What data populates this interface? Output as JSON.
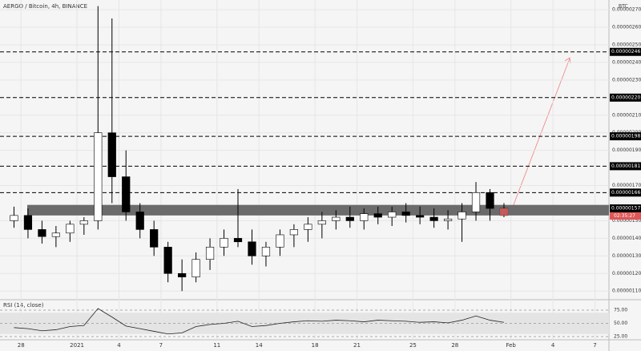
{
  "chart_data": {
    "type": "candlestick",
    "title": "AERGO / Bitcoin, 4h, BINANCE",
    "unit": "BTC",
    "x": [
      -4,
      -3,
      -2,
      -1,
      0,
      1,
      2,
      3,
      4,
      5,
      6,
      7,
      8,
      9,
      10,
      11,
      12,
      13,
      14,
      15,
      16,
      17,
      18,
      19,
      20,
      21,
      22,
      23,
      24,
      25,
      26,
      27,
      28,
      29,
      30,
      31
    ],
    "open": [
      1.5e-06,
      1.53e-06,
      1.45e-06,
      1.41e-06,
      1.43e-06,
      1.48e-06,
      1.5e-06,
      2e-06,
      1.75e-06,
      1.55e-06,
      1.45e-06,
      1.35e-06,
      1.2e-06,
      1.18e-06,
      1.28e-06,
      1.35e-06,
      1.4e-06,
      1.38e-06,
      1.3e-06,
      1.35e-06,
      1.42e-06,
      1.45e-06,
      1.48e-06,
      1.5e-06,
      1.52e-06,
      1.5e-06,
      1.54e-06,
      1.52e-06,
      1.55e-06,
      1.53e-06,
      1.52e-06,
      1.5e-06,
      1.51e-06,
      1.55e-06,
      1.66e-06,
      1.57e-06
    ],
    "high": [
      1.58e-06,
      1.57e-06,
      1.5e-06,
      1.47e-06,
      1.5e-06,
      1.52e-06,
      2.72e-06,
      2.65e-06,
      1.9e-06,
      1.6e-06,
      1.5e-06,
      1.38e-06,
      1.28e-06,
      1.32e-06,
      1.4e-06,
      1.45e-06,
      1.68e-06,
      1.45e-06,
      1.38e-06,
      1.45e-06,
      1.48e-06,
      1.52e-06,
      1.55e-06,
      1.56e-06,
      1.58e-06,
      1.57e-06,
      1.58e-06,
      1.58e-06,
      1.6e-06,
      1.58e-06,
      1.57e-06,
      1.56e-06,
      1.6e-06,
      1.72e-06,
      1.68e-06,
      1.6e-06
    ],
    "low": [
      1.46e-06,
      1.4e-06,
      1.37e-06,
      1.35e-06,
      1.38e-06,
      1.42e-06,
      1.45e-06,
      1.6e-06,
      1.5e-06,
      1.4e-06,
      1.3e-06,
      1.15e-06,
      1.1e-06,
      1.15e-06,
      1.22e-06,
      1.3e-06,
      1.35e-06,
      1.25e-06,
      1.24e-06,
      1.3e-06,
      1.35e-06,
      1.38e-06,
      1.4e-06,
      1.45e-06,
      1.46e-06,
      1.45e-06,
      1.48e-06,
      1.47e-06,
      1.49e-06,
      1.48e-06,
      1.46e-06,
      1.45e-06,
      1.38e-06,
      1.5e-06,
      1.5e-06,
      1.52e-06
    ],
    "close": [
      1.53e-06,
      1.45e-06,
      1.41e-06,
      1.43e-06,
      1.48e-06,
      1.5e-06,
      2e-06,
      1.75e-06,
      1.55e-06,
      1.45e-06,
      1.35e-06,
      1.2e-06,
      1.18e-06,
      1.28e-06,
      1.35e-06,
      1.4e-06,
      1.38e-06,
      1.3e-06,
      1.35e-06,
      1.42e-06,
      1.45e-06,
      1.48e-06,
      1.5e-06,
      1.52e-06,
      1.5e-06,
      1.54e-06,
      1.52e-06,
      1.55e-06,
      1.53e-06,
      1.52e-06,
      1.5e-06,
      1.51e-06,
      1.55e-06,
      1.66e-06,
      1.57e-06,
      1.53e-06
    ],
    "up_color": "#ffffff",
    "down_color": "#000000",
    "outline": "#000000",
    "xlim": [
      -4.5,
      39
    ],
    "xticks": [
      {
        "value": -3,
        "label": "28"
      },
      {
        "value": 1,
        "label": "2021"
      },
      4,
      7,
      11,
      14,
      18,
      21,
      25,
      28,
      {
        "value": 32,
        "label": "Feb"
      },
      {
        "value": 35,
        "label": "4"
      },
      {
        "value": 38,
        "label": "7"
      }
    ],
    "ylim": [
      1.06e-06,
      2.755e-06
    ],
    "yticks": [
      {
        "value": 1.1e-06,
        "label": "0.00000110"
      },
      {
        "value": 1.2e-06,
        "label": "0.00000120"
      },
      {
        "value": 1.3e-06,
        "label": "0.00000130"
      },
      {
        "value": 1.4e-06,
        "label": "0.00000140"
      },
      {
        "value": 1.5e-06,
        "label": "0.00000150"
      },
      {
        "value": 1.7e-06,
        "label": "0.00000170"
      },
      {
        "value": 1.9e-06,
        "label": "0.00000190"
      },
      {
        "value": 2e-06,
        "label": "0.00000200"
      },
      {
        "value": 2.1e-06,
        "label": "0.00000210"
      },
      {
        "value": 2.3e-06,
        "label": "0.00000230"
      },
      {
        "value": 2.4e-06,
        "label": "0.00000240"
      },
      {
        "value": 2.5e-06,
        "label": "0.00000250"
      },
      {
        "value": 2.6e-06,
        "label": "0.00000260"
      },
      {
        "value": 2.7e-06,
        "label": "0.00000270"
      }
    ],
    "levels": [
      {
        "value": 2.46e-06,
        "label": "0.00000246"
      },
      {
        "value": 2.2e-06,
        "label": "0.00000220"
      },
      {
        "value": 1.98e-06,
        "label": "0.00000198"
      },
      {
        "value": 1.81e-06,
        "label": "0.00000181"
      },
      {
        "value": 1.66e-06,
        "label": "0.00000166"
      }
    ],
    "zone": [
      1.53e-06,
      1.59e-06
    ],
    "zone_color": "#6b6b6b",
    "zone_label": {
      "value": 1.57e-06,
      "label": "0.00000157"
    },
    "countdown": "02:35:27",
    "rsi": {
      "title": "RSI (14, close)",
      "values": [
        42,
        40,
        36,
        38,
        44,
        46,
        78,
        62,
        45,
        40,
        35,
        30,
        32,
        44,
        48,
        50,
        54,
        44,
        46,
        50,
        53,
        55,
        54,
        56,
        55,
        53,
        56,
        55,
        54,
        52,
        53,
        51,
        56,
        64,
        56,
        52
      ],
      "color": "#222222",
      "ylim": [
        19,
        91.7
      ],
      "yticks": [
        {
          "value": 25,
          "label": "25.00"
        },
        {
          "value": 50,
          "label": "50.00"
        },
        {
          "value": 75,
          "label": "75.00"
        }
      ],
      "band": [
        30,
        70
      ]
    }
  }
}
